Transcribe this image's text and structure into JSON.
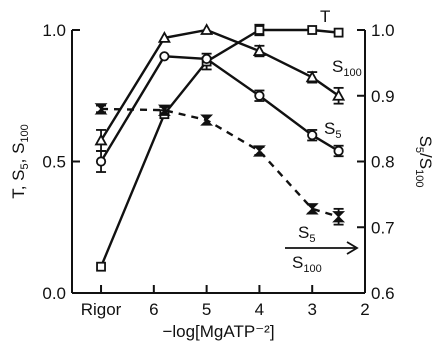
{
  "chart_data": {
    "type": "line",
    "xlabel": "−log[MgATP⁻²]",
    "x_ticks": [
      {
        "value": 7,
        "label": "Rigor"
      },
      {
        "value": 6,
        "label": "6"
      },
      {
        "value": 5,
        "label": "5"
      },
      {
        "value": 4,
        "label": "4"
      },
      {
        "value": 3,
        "label": "3"
      },
      {
        "value": 2,
        "label": "2"
      }
    ],
    "xlim": [
      7.55,
      2
    ],
    "y_left": {
      "label_parts": [
        "T, S",
        "5",
        ", S",
        "100"
      ],
      "range": [
        0,
        1
      ],
      "ticks": [
        {
          "value": 0,
          "label": "0.0"
        },
        {
          "value": 0.5,
          "label": "0.5"
        },
        {
          "value": 1,
          "label": "1.0"
        }
      ]
    },
    "y_right": {
      "label_parts": [
        "S",
        "5",
        "/S",
        "100"
      ],
      "range": [
        0.6,
        1.0
      ],
      "ticks": [
        {
          "value": 0.6,
          "label": "0.6"
        },
        {
          "value": 0.7,
          "label": "0.7"
        },
        {
          "value": 0.8,
          "label": "0.8"
        },
        {
          "value": 0.9,
          "label": "0.9"
        },
        {
          "value": 1.0,
          "label": "1.0"
        }
      ]
    },
    "series": [
      {
        "name": "T",
        "axis": "left",
        "marker": "square",
        "dash": false,
        "points": [
          {
            "x": 7,
            "y": 0.1
          },
          {
            "x": 5.8,
            "y": 0.68
          },
          {
            "x": 5,
            "y": 0.88,
            "err": 0.03
          },
          {
            "x": 4,
            "y": 1.0,
            "err": 0.02
          },
          {
            "x": 3,
            "y": 1.0
          },
          {
            "x": 2.5,
            "y": 0.99
          }
        ]
      },
      {
        "name": "S100",
        "label_parts": [
          "S",
          "100"
        ],
        "axis": "left",
        "marker": "triangle",
        "dash": false,
        "points": [
          {
            "x": 7,
            "y": 0.58,
            "err": 0.04
          },
          {
            "x": 5.8,
            "y": 0.97
          },
          {
            "x": 5,
            "y": 1.0
          },
          {
            "x": 4,
            "y": 0.92,
            "err": 0.02
          },
          {
            "x": 3,
            "y": 0.82,
            "err": 0.02
          },
          {
            "x": 2.5,
            "y": 0.75,
            "err": 0.03
          }
        ]
      },
      {
        "name": "S5",
        "label_parts": [
          "S",
          "5"
        ],
        "axis": "left",
        "marker": "circle",
        "dash": false,
        "points": [
          {
            "x": 7,
            "y": 0.5,
            "err": 0.04
          },
          {
            "x": 5.8,
            "y": 0.9
          },
          {
            "x": 5,
            "y": 0.89
          },
          {
            "x": 4,
            "y": 0.75,
            "err": 0.02
          },
          {
            "x": 3,
            "y": 0.6,
            "err": 0.02
          },
          {
            "x": 2.5,
            "y": 0.54,
            "err": 0.02
          }
        ]
      },
      {
        "name": "S5/S100",
        "label_parts": [
          "S",
          "5",
          "S",
          "100"
        ],
        "axis": "right",
        "marker": "bowtie",
        "dash": true,
        "points": [
          {
            "x": 7,
            "y": 0.88,
            "err": 0.005
          },
          {
            "x": 5.8,
            "y": 0.878,
            "err": 0.005
          },
          {
            "x": 5,
            "y": 0.863
          },
          {
            "x": 4,
            "y": 0.816,
            "err": 0.006
          },
          {
            "x": 3,
            "y": 0.728,
            "err": 0.007
          },
          {
            "x": 2.5,
            "y": 0.716,
            "err": 0.012
          }
        ]
      }
    ]
  }
}
